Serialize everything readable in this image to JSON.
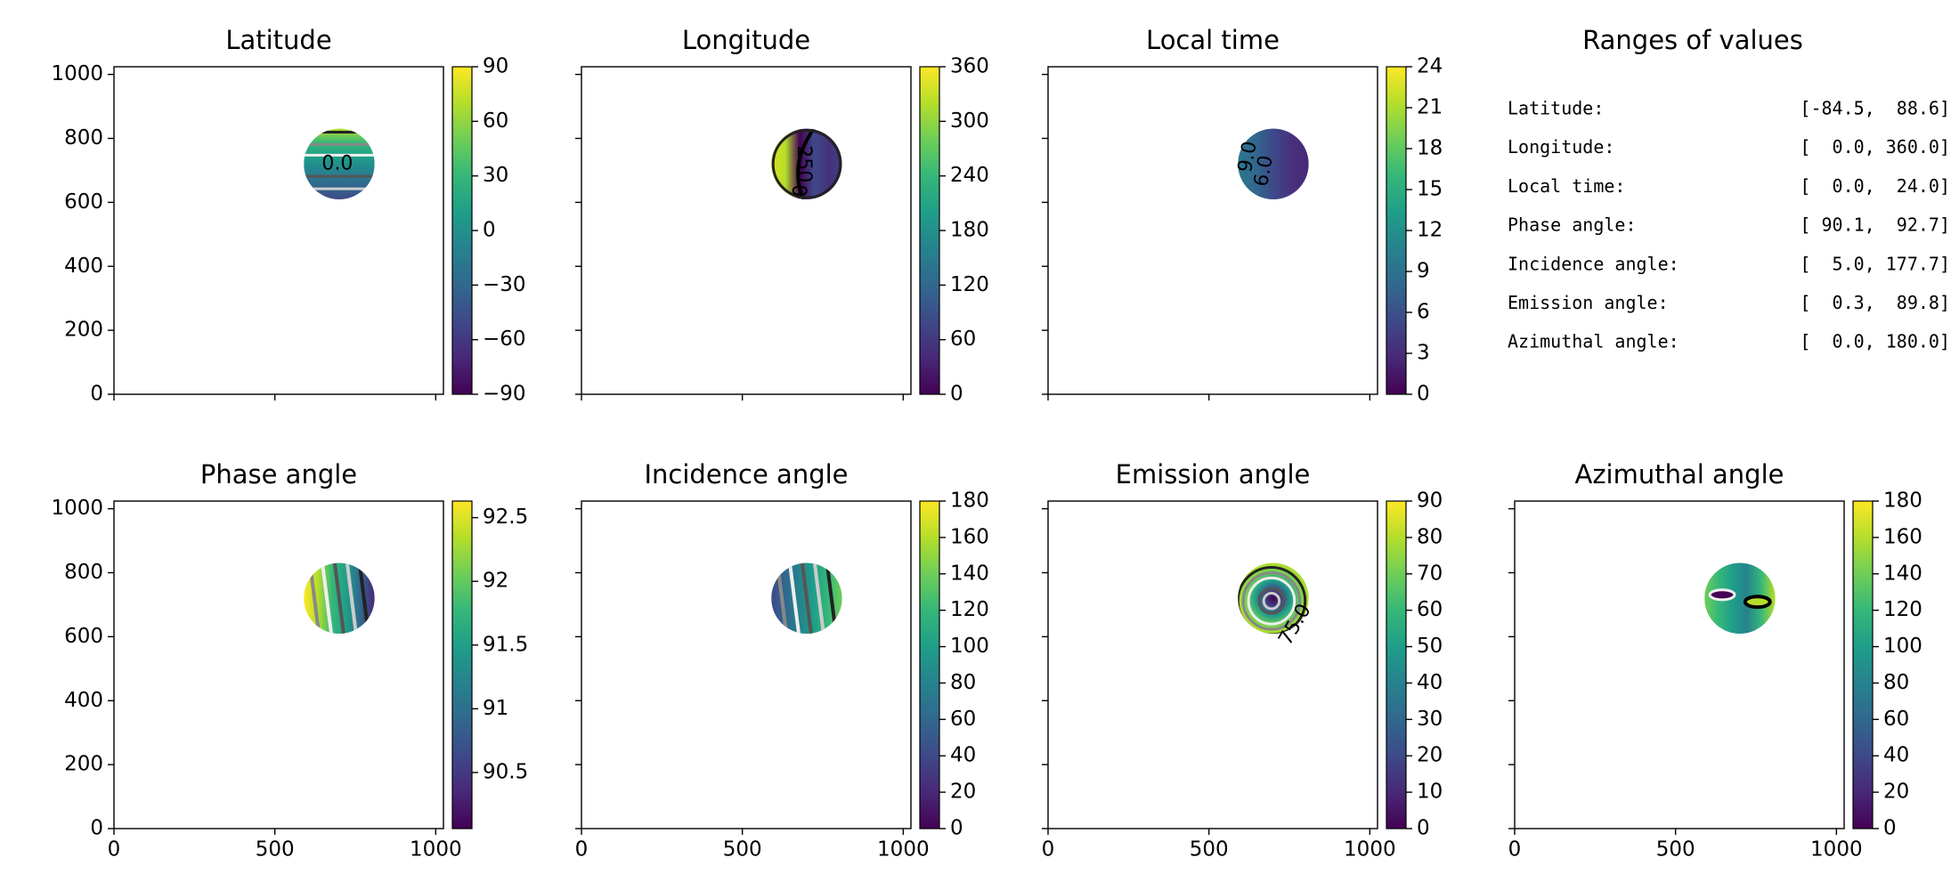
{
  "chart_data": [
    {
      "type": "image",
      "title": "Latitude",
      "xlim": [
        0,
        1024
      ],
      "xticks": [
        0,
        500,
        1000
      ],
      "ylim": [
        0,
        1024
      ],
      "yticks": [
        0,
        200,
        400,
        600,
        800,
        1000
      ],
      "tick_labels": {
        "x": false,
        "y": true
      },
      "colormap": "viridis",
      "colorbar": {
        "lim": [
          -90,
          90
        ],
        "ticks": [
          {
            "value": -90,
            "label": "−90"
          },
          {
            "value": -60,
            "label": "−60"
          },
          {
            "value": -30,
            "label": "−30"
          },
          0,
          30,
          60,
          90
        ]
      },
      "annotations": [
        "0.0"
      ]
    },
    {
      "type": "image",
      "title": "Longitude",
      "xlim": [
        0,
        1024
      ],
      "xticks": [
        0,
        500,
        1000
      ],
      "ylim": [
        0,
        1024
      ],
      "yticks": [
        0,
        200,
        400,
        600,
        800,
        1000
      ],
      "tick_labels": {
        "x": false,
        "y": false
      },
      "colormap": "viridis",
      "colorbar": {
        "lim": [
          0,
          360
        ],
        "ticks": [
          0,
          60,
          120,
          180,
          240,
          300,
          360
        ]
      },
      "annotations": [
        "250",
        "0"
      ]
    },
    {
      "type": "image",
      "title": "Local time",
      "xlim": [
        0,
        1024
      ],
      "xticks": [
        0,
        500,
        1000
      ],
      "ylim": [
        0,
        1024
      ],
      "yticks": [
        0,
        200,
        400,
        600,
        800,
        1000
      ],
      "tick_labels": {
        "x": false,
        "y": false
      },
      "colormap": "viridis",
      "colorbar": {
        "lim": [
          0,
          24
        ],
        "ticks": [
          0,
          3,
          6,
          9,
          12,
          15,
          18,
          21,
          24
        ]
      },
      "annotations": [
        "9.0",
        "6.0"
      ]
    },
    {
      "type": "text",
      "title": "Ranges of values",
      "rows": [
        {
          "label": "Latitude:",
          "range": "[-84.5,  88.6]"
        },
        {
          "label": "Longitude:",
          "range": "[  0.0, 360.0]"
        },
        {
          "label": "Local time:",
          "range": "[  0.0,  24.0]"
        },
        {
          "label": "Phase angle:",
          "range": "[ 90.1,  92.7]"
        },
        {
          "label": "Incidence angle:",
          "range": "[  5.0, 177.7]"
        },
        {
          "label": "Emission angle:",
          "range": "[  0.3,  89.8]"
        },
        {
          "label": "Azimuthal angle:",
          "range": "[  0.0, 180.0]"
        }
      ]
    },
    {
      "type": "image",
      "title": "Phase angle",
      "xlim": [
        0,
        1024
      ],
      "xticks": [
        0,
        500,
        1000
      ],
      "ylim": [
        0,
        1024
      ],
      "yticks": [
        0,
        200,
        400,
        600,
        800,
        1000
      ],
      "tick_labels": {
        "x": true,
        "y": true
      },
      "colormap": "viridis",
      "colorbar": {
        "lim": [
          90.06,
          92.63
        ],
        "ticks": [
          90.5,
          91.0,
          91.5,
          92.0,
          92.5
        ]
      },
      "annotations": []
    },
    {
      "type": "image",
      "title": "Incidence angle",
      "xlim": [
        0,
        1024
      ],
      "xticks": [
        0,
        500,
        1000
      ],
      "ylim": [
        0,
        1024
      ],
      "yticks": [
        0,
        200,
        400,
        600,
        800,
        1000
      ],
      "tick_labels": {
        "x": true,
        "y": false
      },
      "colormap": "viridis",
      "colorbar": {
        "lim": [
          0,
          180
        ],
        "ticks": [
          0,
          20,
          40,
          60,
          80,
          100,
          120,
          140,
          160,
          180
        ]
      },
      "annotations": []
    },
    {
      "type": "image",
      "title": "Emission angle",
      "xlim": [
        0,
        1024
      ],
      "xticks": [
        0,
        500,
        1000
      ],
      "ylim": [
        0,
        1024
      ],
      "yticks": [
        0,
        200,
        400,
        600,
        800,
        1000
      ],
      "tick_labels": {
        "x": true,
        "y": false
      },
      "colormap": "viridis",
      "colorbar": {
        "lim": [
          0,
          90
        ],
        "ticks": [
          0,
          10,
          20,
          30,
          40,
          50,
          60,
          70,
          80,
          90
        ]
      },
      "annotations": [
        "75.0"
      ]
    },
    {
      "type": "image",
      "title": "Azimuthal angle",
      "xlim": [
        0,
        1024
      ],
      "xticks": [
        0,
        500,
        1000
      ],
      "ylim": [
        0,
        1024
      ],
      "yticks": [
        0,
        200,
        400,
        600,
        800,
        1000
      ],
      "tick_labels": {
        "x": true,
        "y": false
      },
      "colormap": "viridis",
      "colorbar": {
        "lim": [
          0,
          180
        ],
        "ticks": [
          0,
          20,
          40,
          60,
          80,
          100,
          120,
          140,
          160,
          180
        ]
      },
      "annotations": []
    }
  ]
}
